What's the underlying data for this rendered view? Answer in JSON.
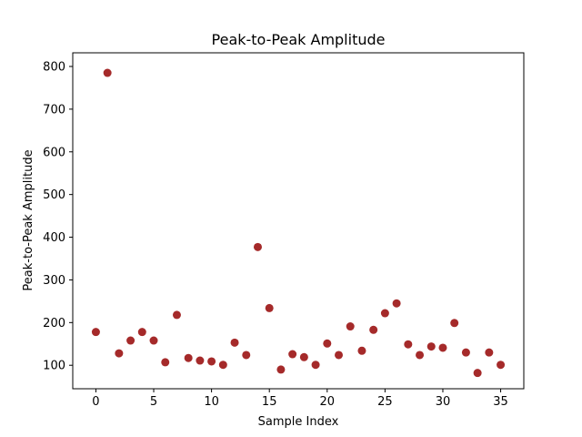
{
  "chart_data": {
    "type": "scatter",
    "title": "Peak-to-Peak Amplitude",
    "xlabel": "Sample Index",
    "ylabel": "Peak-to-Peak Amplitude",
    "xlim": [
      -2,
      37
    ],
    "ylim": [
      45,
      832
    ],
    "xticks": [
      0,
      5,
      10,
      15,
      20,
      25,
      30,
      35
    ],
    "yticks": [
      100,
      200,
      300,
      400,
      500,
      600,
      700,
      800
    ],
    "grid": false,
    "legend": "none",
    "marker_color": "#a52a2a",
    "x": [
      0,
      1,
      2,
      3,
      4,
      5,
      6,
      7,
      8,
      9,
      10,
      11,
      12,
      13,
      14,
      15,
      16,
      17,
      18,
      19,
      20,
      21,
      22,
      23,
      24,
      25,
      26,
      27,
      28,
      29,
      30,
      31,
      32,
      33,
      34,
      35
    ],
    "y": [
      178,
      785,
      128,
      158,
      178,
      158,
      107,
      218,
      117,
      111,
      109,
      101,
      153,
      124,
      377,
      234,
      90,
      126,
      119,
      101,
      151,
      124,
      191,
      134,
      183,
      222,
      245,
      149,
      124,
      144,
      141,
      199,
      130,
      82,
      130,
      101
    ]
  }
}
